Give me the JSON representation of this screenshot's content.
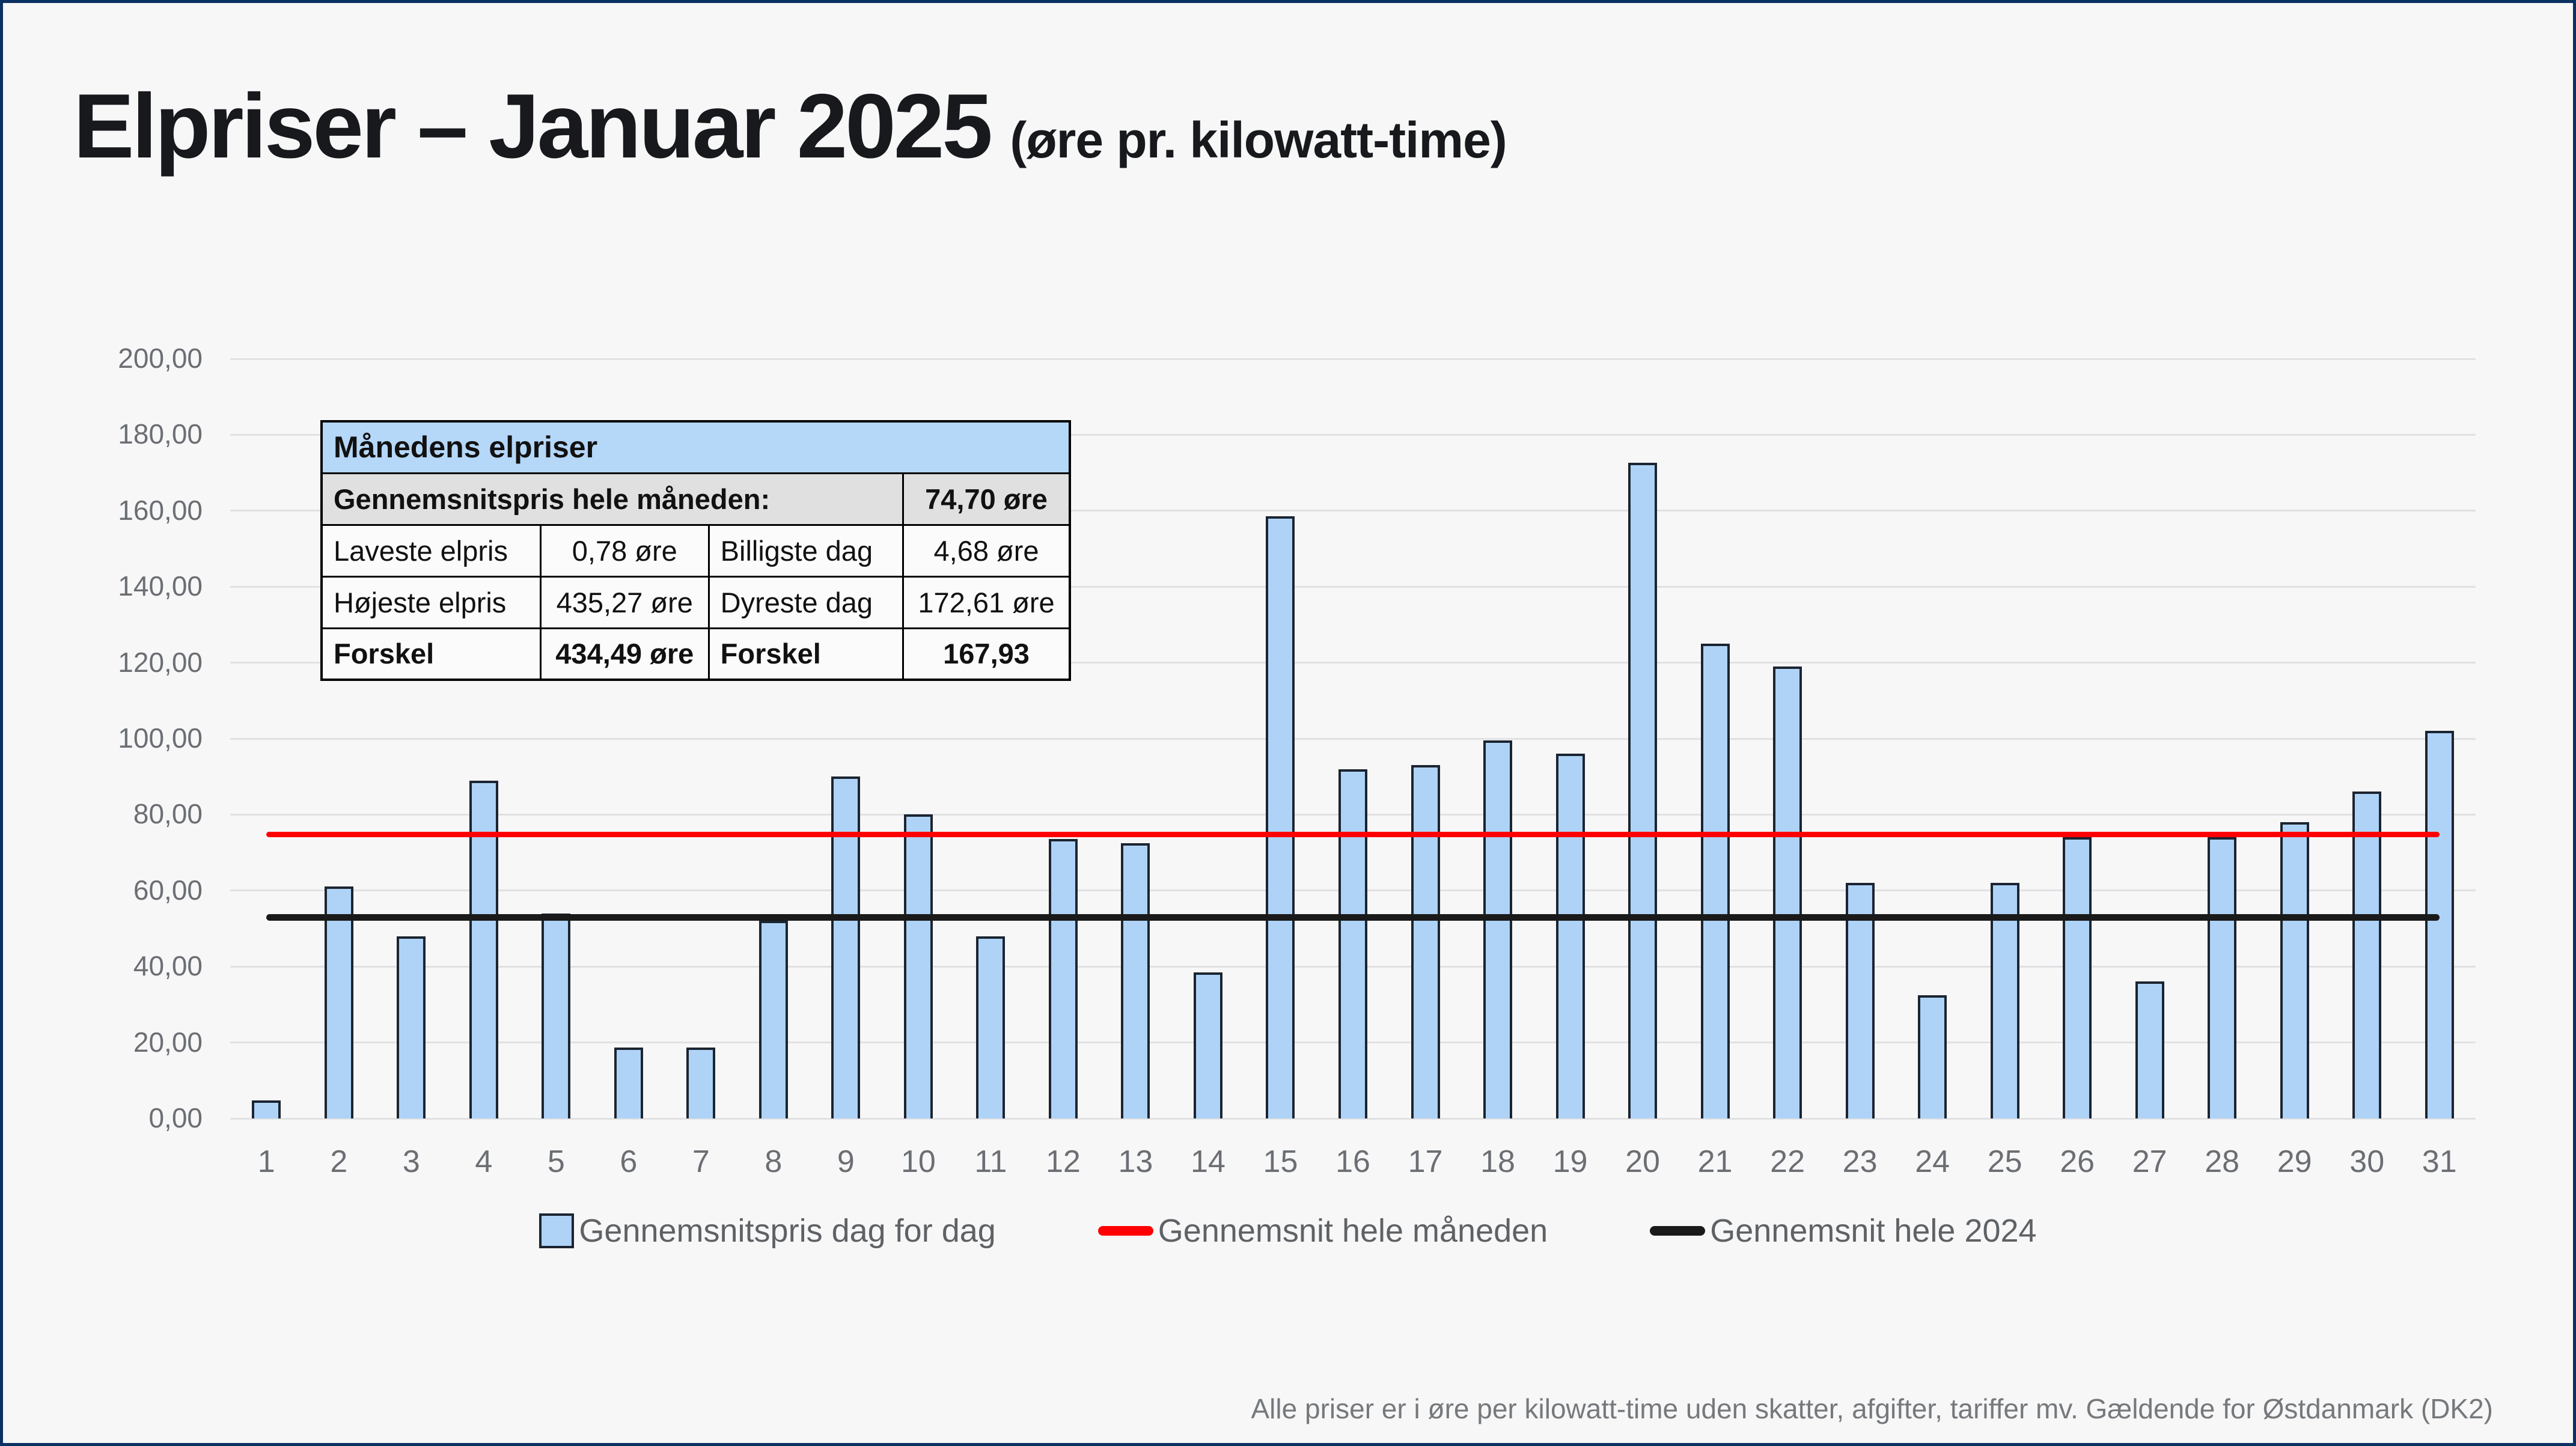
{
  "title": {
    "main": "Elpriser – Januar 2025",
    "subtitle": "(øre pr. kilowatt-time)"
  },
  "info_table": {
    "title": "Månedens elpriser",
    "avg_row": {
      "label": "Gennemsnitspris hele måneden:",
      "value": "74,70 øre"
    },
    "rows": [
      {
        "c1": "Laveste elpris",
        "c2": "0,78 øre",
        "c3": "Billigste dag",
        "c4": "4,68 øre"
      },
      {
        "c1": "Højeste elpris",
        "c2": "435,27 øre",
        "c3": "Dyreste dag",
        "c4": "172,61 øre"
      },
      {
        "c1": "Forskel",
        "c2": "434,49 øre",
        "c3": "Forskel",
        "c4": "167,93"
      }
    ]
  },
  "legend": {
    "items": [
      {
        "label": "Gennemsnitspris dag for dag",
        "swatch": "bar",
        "color": "#aed3f7"
      },
      {
        "label": "Gennemsnit hele måneden",
        "swatch": "line",
        "color": "#fe0000"
      },
      {
        "label": "Gennemsnit hele 2024",
        "swatch": "line",
        "color": "#1a1a1a"
      }
    ]
  },
  "footer": "Alle priser er i øre per kilowatt-time uden skatter, afgifter, tariffer mv. Gældende for Østdanmark (DK2)",
  "colors": {
    "bar_fill": "#aed3f7",
    "bar_border": "#1b2430",
    "month_avg_line": "#fe0000",
    "year2024_avg_line": "#1a1a1a",
    "grid": "#e1e1e3",
    "frame_border": "#0a3161",
    "table_header_blue": "#b5d7f8",
    "table_avg_gray": "#e0e0e0"
  },
  "chart_data": {
    "type": "bar",
    "title": "Elpriser – Januar 2025 (øre pr. kilowatt-time)",
    "xlabel": "",
    "ylabel": "øre pr. kilowatt-time",
    "ylim": [
      0,
      200
    ],
    "ytick_step": 20,
    "ytick_labels": [
      "0,00",
      "20,00",
      "40,00",
      "60,00",
      "80,00",
      "100,00",
      "120,00",
      "140,00",
      "160,00",
      "180,00",
      "200,00"
    ],
    "grid": true,
    "legend_position": "bottom",
    "categories": [
      1,
      2,
      3,
      4,
      5,
      6,
      7,
      8,
      9,
      10,
      11,
      12,
      13,
      14,
      15,
      16,
      17,
      18,
      19,
      20,
      21,
      22,
      23,
      24,
      25,
      26,
      27,
      28,
      29,
      30,
      31
    ],
    "series": [
      {
        "name": "Gennemsnitspris dag for dag",
        "type": "bar",
        "color": "#aed3f7",
        "values": [
          4.68,
          61,
          48,
          89,
          54,
          18.6,
          18.6,
          52,
          90,
          80,
          48,
          73.5,
          72.5,
          38.5,
          158.5,
          92,
          93,
          99.5,
          96,
          172.61,
          125,
          119,
          62,
          32.5,
          62,
          74,
          36,
          74,
          78,
          86,
          102
        ]
      },
      {
        "name": "Gennemsnit hele måneden",
        "type": "hline",
        "color": "#fe0000",
        "value": 74.7,
        "thickness": 9
      },
      {
        "name": "Gennemsnit hele 2024",
        "type": "hline",
        "color": "#1a1a1a",
        "value": 53.0,
        "thickness": 11
      }
    ]
  }
}
